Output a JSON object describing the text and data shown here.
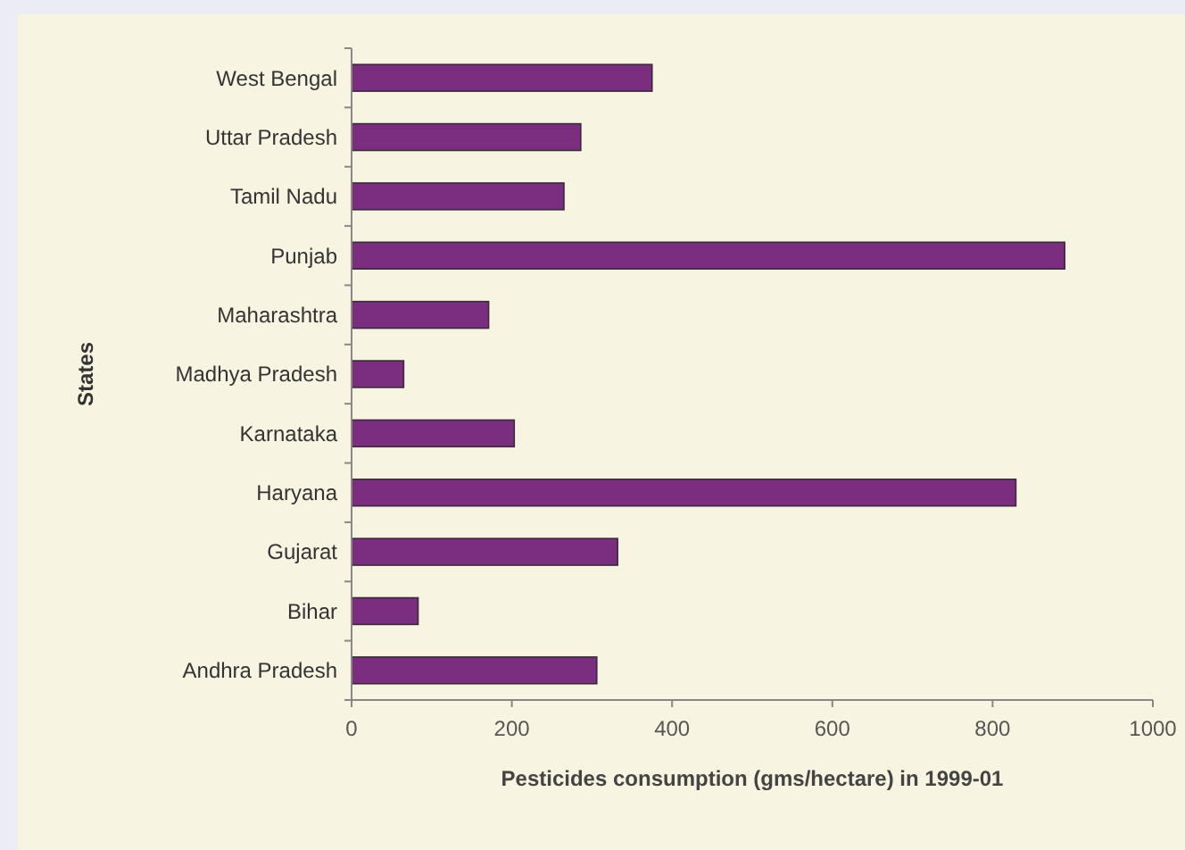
{
  "chart_data": {
    "type": "bar",
    "orientation": "horizontal",
    "xlabel": "Pesticides consumption (gms/hectare) in 1999-01",
    "ylabel": "States",
    "categories": [
      "West Bengal",
      "Uttar Pradesh",
      "Tamil Nadu",
      "Punjab",
      "Maharashtra",
      "Madhya Pradesh",
      "Karnataka",
      "Haryana",
      "Gujarat",
      "Bihar",
      "Andhra Pradesh"
    ],
    "values": [
      375,
      286,
      265,
      890,
      171,
      65,
      203,
      829,
      332,
      83,
      306
    ],
    "color": "#7b2d7f",
    "xlim": [
      0,
      1000
    ],
    "xticks": [
      0,
      200,
      400,
      600,
      800,
      1000
    ]
  }
}
